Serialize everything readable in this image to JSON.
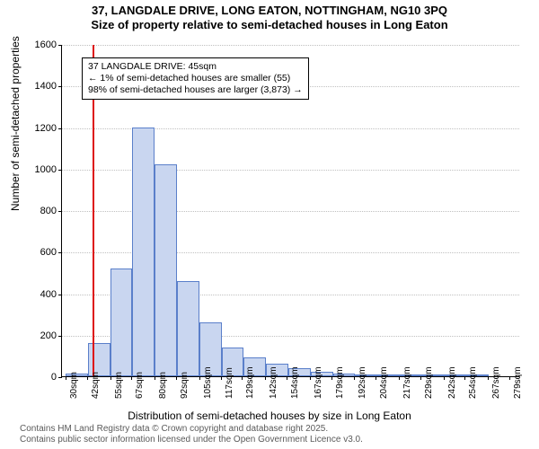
{
  "title": {
    "line1": "37, LANGDALE DRIVE, LONG EATON, NOTTINGHAM, NG10 3PQ",
    "line2": "Size of property relative to semi-detached houses in Long Eaton"
  },
  "ylabel": "Number of semi-detached properties",
  "xlabel": "Distribution of semi-detached houses by size in Long Eaton",
  "footer": {
    "line1": "Contains HM Land Registry data © Crown copyright and database right 2025.",
    "line2": "Contains public sector information licensed under the Open Government Licence v3.0."
  },
  "annotation": {
    "line1": "37 LANGDALE DRIVE: 45sqm",
    "line2": "← 1% of semi-detached houses are smaller (55)",
    "line3": "98% of semi-detached houses are larger (3,873) →"
  },
  "chart": {
    "type": "histogram",
    "background_color": "#ffffff",
    "bar_fill": "#c9d6f0",
    "bar_stroke": "#5a7fca",
    "grid_color": "#c0c0c0",
    "refline_color": "#dd1111",
    "refline_x": 45,
    "ylim": [
      0,
      1600
    ],
    "ytick_step": 200,
    "yticks": [
      0,
      200,
      400,
      600,
      800,
      1000,
      1200,
      1400,
      1600
    ],
    "xlim": [
      28,
      285
    ],
    "xticks": [
      30,
      42,
      55,
      67,
      80,
      92,
      105,
      117,
      129,
      142,
      154,
      167,
      179,
      192,
      204,
      217,
      229,
      242,
      254,
      267,
      279
    ],
    "xtick_suffix": "sqm",
    "bin_width": 12.5,
    "bin_left_edges": [
      30,
      42.5,
      55,
      67.5,
      80,
      92.5,
      105,
      117.5,
      130,
      142.5,
      155,
      167.5,
      180,
      192.5,
      205,
      217.5,
      230,
      242.5,
      255,
      267.5
    ],
    "values": [
      15,
      160,
      520,
      1200,
      1020,
      460,
      260,
      140,
      90,
      60,
      40,
      20,
      12,
      6,
      4,
      2,
      2,
      1,
      1,
      0
    ],
    "title_fontsize": 13,
    "label_fontsize": 12,
    "tick_fontsize": 11,
    "annotation_fontsize": 10.5,
    "footer_fontsize": 10,
    "footer_color": "#5a5a5a"
  }
}
